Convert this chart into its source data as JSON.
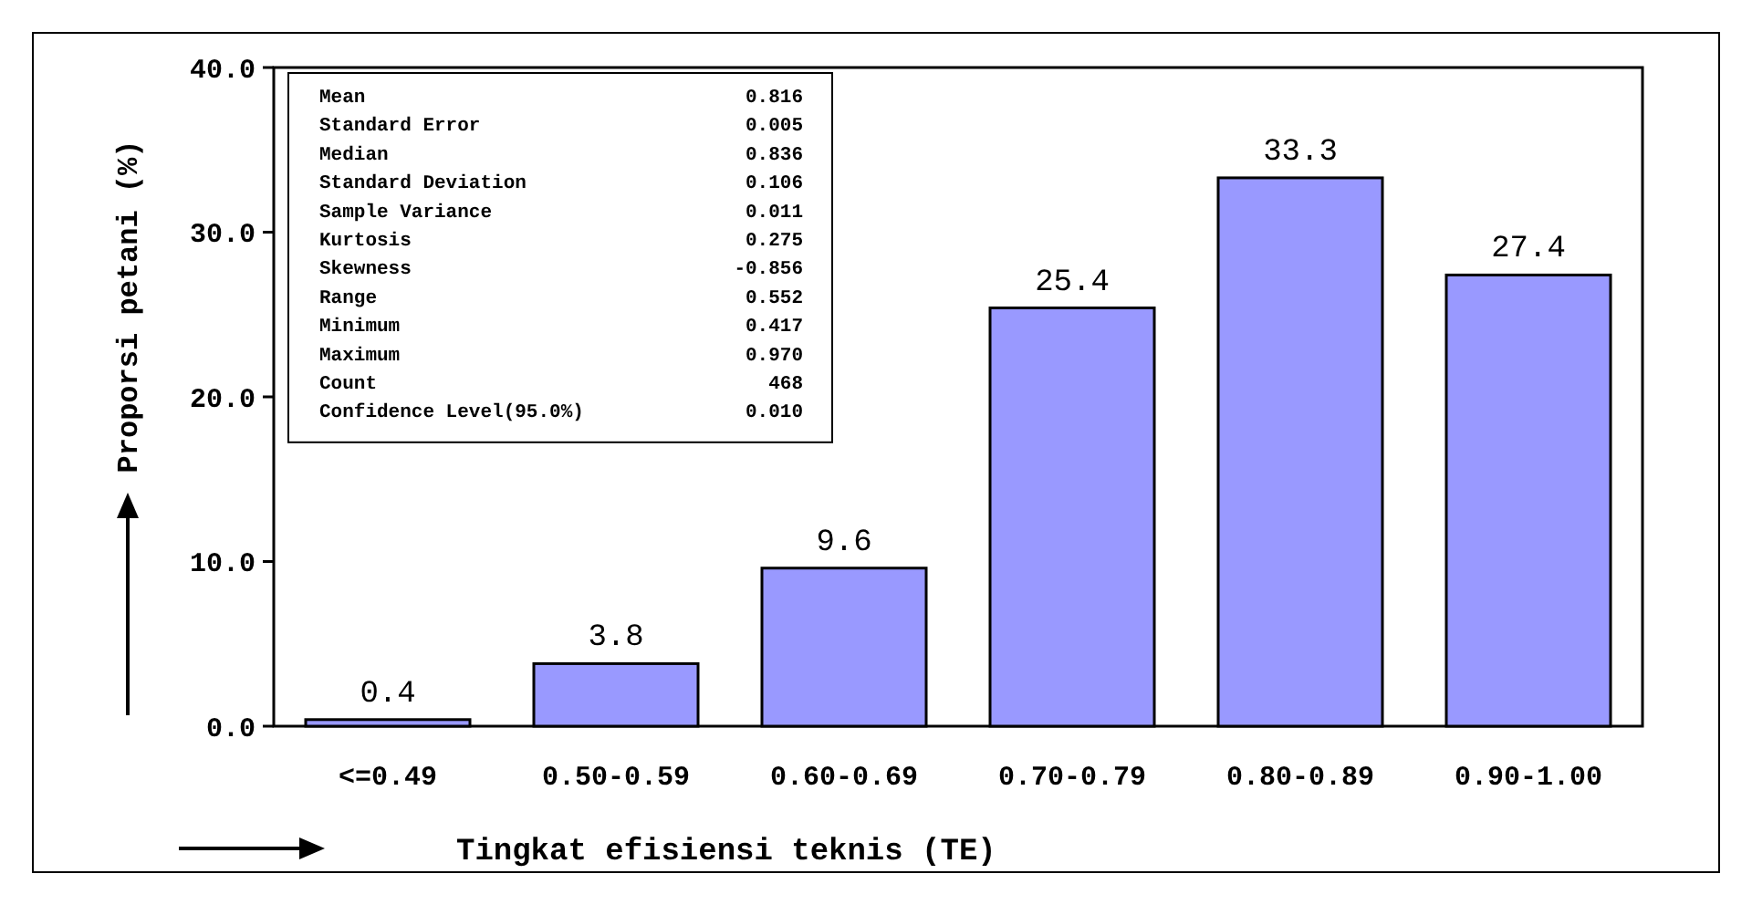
{
  "chart_data": {
    "type": "bar",
    "xlabel": "Tingkat efisiensi teknis (TE)",
    "ylabel": "Proporsi petani (%)",
    "categories": [
      "<=0.49",
      "0.50-0.59",
      "0.60-0.69",
      "0.70-0.79",
      "0.80-0.89",
      "0.90-1.00"
    ],
    "values": [
      0.4,
      3.8,
      9.6,
      25.4,
      33.3,
      27.4
    ],
    "color": "#9999ff",
    "data_labels": true,
    "ylim": [
      0,
      40
    ],
    "yticks": [
      {
        "value": 0,
        "label": "0.0"
      },
      {
        "value": 10,
        "label": "10.0"
      },
      {
        "value": 20,
        "label": "20.0"
      },
      {
        "value": 30,
        "label": "30.0"
      },
      {
        "value": 40,
        "label": "40.0"
      }
    ],
    "grid": false,
    "annotations": [
      "Mean 0.816",
      "Standard Error 0.005",
      "Median 0.836",
      "Standard Deviation 0.106",
      "Sample Variance 0.011",
      "Kurtosis 0.275",
      "Skewness -0.856",
      "Range 0.552",
      "Minimum 0.417",
      "Maximum 0.970",
      "Count 468",
      "Confidence Level(95.0%) 0.010"
    ]
  }
}
